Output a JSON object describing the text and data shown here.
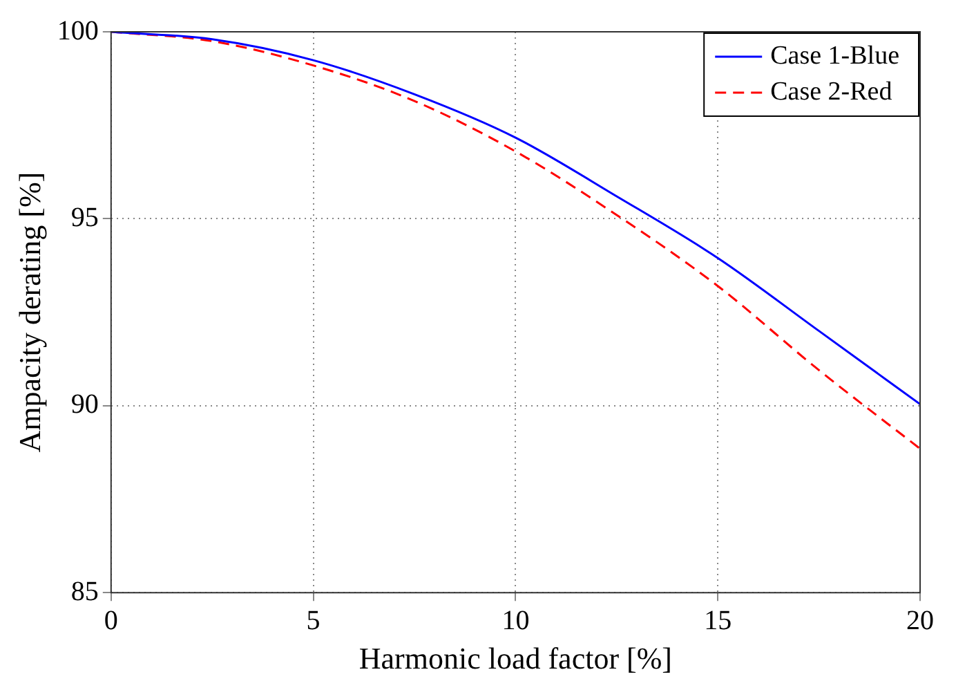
{
  "chart_data": {
    "type": "line",
    "xlabel": "Harmonic load factor [%]",
    "ylabel": "Ampacity derating [%]",
    "xlim": [
      0,
      20
    ],
    "xticks": [
      0,
      5,
      10,
      15,
      20
    ],
    "ylim": [
      85,
      100
    ],
    "yticks": [
      85,
      90,
      95,
      100
    ],
    "grid": true,
    "legend": "top right",
    "marker": "none",
    "series": [
      {
        "name": "Case 1-Blue",
        "color": "#0000ff",
        "line_style": "solid",
        "x": [
          0,
          2.5,
          5,
          7.5,
          10,
          12.5,
          15,
          17.5,
          20
        ],
        "values": [
          100,
          99.8,
          99.24,
          98.33,
          97.17,
          95.6,
          93.95,
          92.0,
          90.04
        ]
      },
      {
        "name": "Case 2-Red",
        "color": "#ff0000",
        "line_style": "dashed",
        "x": [
          0,
          2.5,
          5,
          7.5,
          10,
          12.5,
          15,
          17.5,
          20
        ],
        "values": [
          100,
          99.75,
          99.1,
          98.15,
          96.8,
          95.1,
          93.2,
          90.95,
          88.85
        ]
      }
    ]
  }
}
